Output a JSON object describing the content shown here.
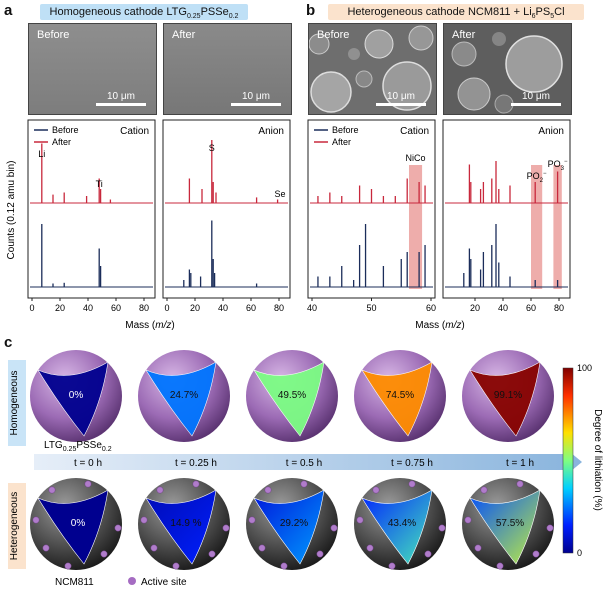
{
  "panel_a": {
    "letter": "a",
    "title": "Homogeneous cathode LTG",
    "title_sub": "0.25",
    "title_rest": "PSSe",
    "title_sub2": "0.2",
    "sem_before": "Before",
    "sem_after": "After",
    "scale_bar": "10 μm",
    "cation_label": "Cation",
    "anion_label": "Anion",
    "legend_before": "Before",
    "legend_after": "After",
    "peaks": {
      "li": "Li",
      "ti": "Ti",
      "s": "S",
      "se": "Se"
    }
  },
  "panel_b": {
    "letter": "b",
    "title": "Heterogeneous cathode NCM811 + Li",
    "title_sub": "6",
    "title_rest": "PS",
    "title_sub2": "5",
    "title_end": "Cl",
    "sem_before": "Before",
    "sem_after": "After",
    "scale_bar": "10 μm",
    "cation_label": "Cation",
    "anion_label": "Anion",
    "legend_before": "Before",
    "legend_after": "After",
    "peaks": {
      "nico": "NiCo",
      "po2": "PO",
      "po2_sub": "2",
      "po2_sup": "−",
      "po3": "PO",
      "po3_sub": "3",
      "po3_sup": "−"
    }
  },
  "ylabel": "Counts (0.12 amu bin)",
  "xlabel": "Mass (m/z)",
  "chart_data": [
    {
      "type": "line",
      "title": "Cation",
      "x_ticks": [
        0,
        20,
        40,
        60,
        80
      ],
      "xlim": [
        0,
        85
      ],
      "series": [
        {
          "name": "After",
          "color": "#c8283c",
          "peaks": [
            [
              7,
              0.85
            ],
            [
              15,
              0.12
            ],
            [
              23,
              0.15
            ],
            [
              39,
              0.1
            ],
            [
              48,
              0.35
            ],
            [
              49,
              0.2
            ],
            [
              56,
              0.05
            ]
          ]
        },
        {
          "name": "Before",
          "color": "#1b2d5a",
          "peaks": [
            [
              7,
              0.9
            ],
            [
              15,
              0.05
            ],
            [
              23,
              0.06
            ],
            [
              48,
              0.55
            ],
            [
              49,
              0.3
            ]
          ]
        }
      ]
    },
    {
      "type": "line",
      "title": "Anion",
      "x_ticks": [
        0,
        20,
        40,
        60,
        80
      ],
      "xlim": [
        0,
        85
      ],
      "series": [
        {
          "name": "After",
          "color": "#c8283c",
          "peaks": [
            [
              16,
              0.35
            ],
            [
              25,
              0.2
            ],
            [
              32,
              0.9
            ],
            [
              33,
              0.3
            ],
            [
              35,
              0.15
            ],
            [
              64,
              0.08
            ],
            [
              79,
              0.05
            ]
          ]
        },
        {
          "name": "Before",
          "color": "#1b2d5a",
          "peaks": [
            [
              12,
              0.1
            ],
            [
              16,
              0.25
            ],
            [
              17,
              0.2
            ],
            [
              24,
              0.15
            ],
            [
              32,
              0.95
            ],
            [
              33,
              0.4
            ],
            [
              34,
              0.2
            ],
            [
              64,
              0.05
            ]
          ]
        }
      ]
    },
    {
      "type": "line",
      "title": "Cation",
      "x_ticks": [
        40,
        50,
        60
      ],
      "xlim": [
        40,
        60
      ],
      "series": [
        {
          "name": "After",
          "color": "#c8283c",
          "peaks": [
            [
              41,
              0.1
            ],
            [
              43,
              0.15
            ],
            [
              45,
              0.1
            ],
            [
              48,
              0.25
            ],
            [
              50,
              0.2
            ],
            [
              52,
              0.1
            ],
            [
              54,
              0.1
            ],
            [
              56,
              0.35
            ],
            [
              58,
              0.3
            ],
            [
              59,
              0.25
            ]
          ]
        },
        {
          "name": "Before",
          "color": "#1b2d5a",
          "peaks": [
            [
              41,
              0.15
            ],
            [
              43,
              0.15
            ],
            [
              45,
              0.3
            ],
            [
              47,
              0.1
            ],
            [
              48,
              0.6
            ],
            [
              49,
              0.9
            ],
            [
              52,
              0.3
            ],
            [
              55,
              0.4
            ],
            [
              56,
              0.5
            ],
            [
              58,
              0.5
            ],
            [
              59,
              0.6
            ]
          ]
        }
      ]
    },
    {
      "type": "line",
      "title": "Anion",
      "x_ticks": [
        20,
        40,
        60,
        80
      ],
      "xlim": [
        0,
        85
      ],
      "series": [
        {
          "name": "After",
          "color": "#c8283c",
          "peaks": [
            [
              16,
              0.55
            ],
            [
              17,
              0.3
            ],
            [
              24,
              0.2
            ],
            [
              26,
              0.3
            ],
            [
              32,
              0.35
            ],
            [
              35,
              0.6
            ],
            [
              37,
              0.2
            ],
            [
              45,
              0.25
            ],
            [
              63,
              0.3
            ],
            [
              79,
              0.45
            ]
          ]
        },
        {
          "name": "Before",
          "color": "#1b2d5a",
          "peaks": [
            [
              12,
              0.2
            ],
            [
              16,
              0.55
            ],
            [
              17,
              0.4
            ],
            [
              24,
              0.25
            ],
            [
              26,
              0.5
            ],
            [
              32,
              0.6
            ],
            [
              35,
              0.9
            ],
            [
              37,
              0.35
            ],
            [
              45,
              0.15
            ],
            [
              63,
              0.1
            ],
            [
              79,
              0.1
            ]
          ]
        }
      ]
    }
  ],
  "panel_c": {
    "letter": "c",
    "row_homogeneous": "Homogeneous",
    "row_heterogeneous": "Heterogeneous",
    "homog_material": "LTG",
    "homog_material_sub1": "0.25",
    "homog_material_rest": "PSSe",
    "homog_material_sub2": "0.2",
    "hetero_material": "NCM811",
    "active_site": "Active site",
    "times": [
      "t = 0 h",
      "t = 0.25 h",
      "t = 0.5 h",
      "t = 0.75 h",
      "t = 1 h"
    ],
    "homog_values": [
      "0%",
      "24.7%",
      "49.5%",
      "74.5%",
      "99.1%"
    ],
    "hetero_values": [
      "0%",
      "14.9 %",
      "29.2%",
      "43.4%",
      "57.5%"
    ],
    "homog_fractions": [
      0.0,
      0.247,
      0.495,
      0.745,
      0.991
    ],
    "hetero_fractions": [
      0.0,
      0.149,
      0.292,
      0.434,
      0.575
    ],
    "colorbar_label": "Degree of lithiation (%)",
    "colorbar_max": "100",
    "colorbar_min": "0"
  }
}
